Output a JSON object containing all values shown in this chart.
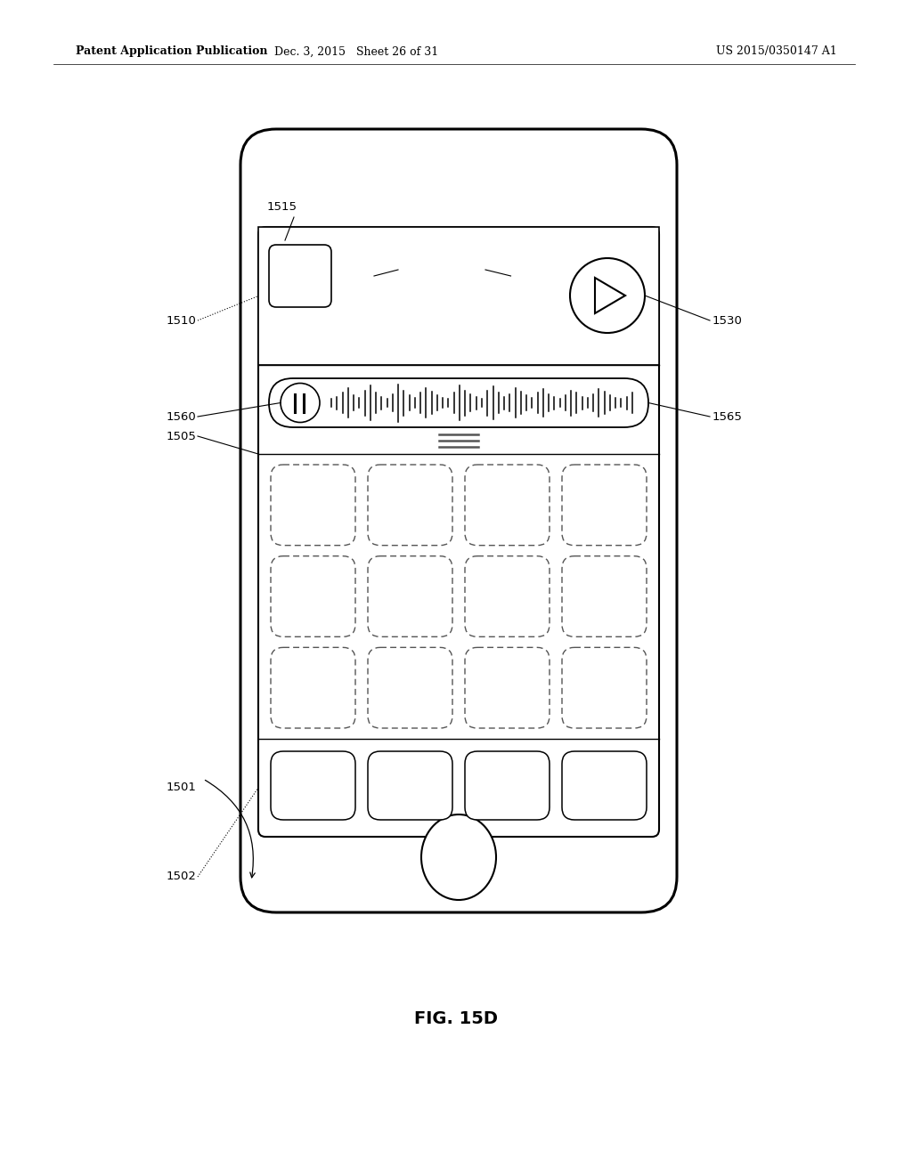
{
  "title": "FIG. 15D",
  "header_left": "Patent Application Publication",
  "header_center": "Dec. 3, 2015   Sheet 26 of 31",
  "header_right": "US 2015/0350147 A1",
  "bg_color": "#ffffff",
  "line_color": "#000000",
  "fig_width": 10.24,
  "fig_height": 13.2,
  "dpi": 100
}
